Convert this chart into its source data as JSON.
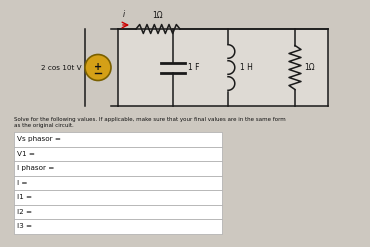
{
  "bg_color": "#cdc8c0",
  "source_label": "2 cos 10t V",
  "r1_label": "1Ω",
  "cap_label": "1 F",
  "ind_label": "1 H",
  "r2_label": "1Ω",
  "cur_label": "i",
  "instruction": "Solve for the following values. If applicable, make sure that your final values are in the same form\nas the original circuit.",
  "table_rows": [
    "Vs phasor =",
    "V1 =",
    "I phasor =",
    "I =",
    "I1 =",
    "I2 =",
    "I3 ="
  ],
  "line_color": "#1a1a1a",
  "source_fill": "#d4a017",
  "source_edge": "#7a6000",
  "text_color": "#111111",
  "table_bg": "#ffffff",
  "table_border": "#aaaaaa",
  "inner_bg": "#dedad4"
}
